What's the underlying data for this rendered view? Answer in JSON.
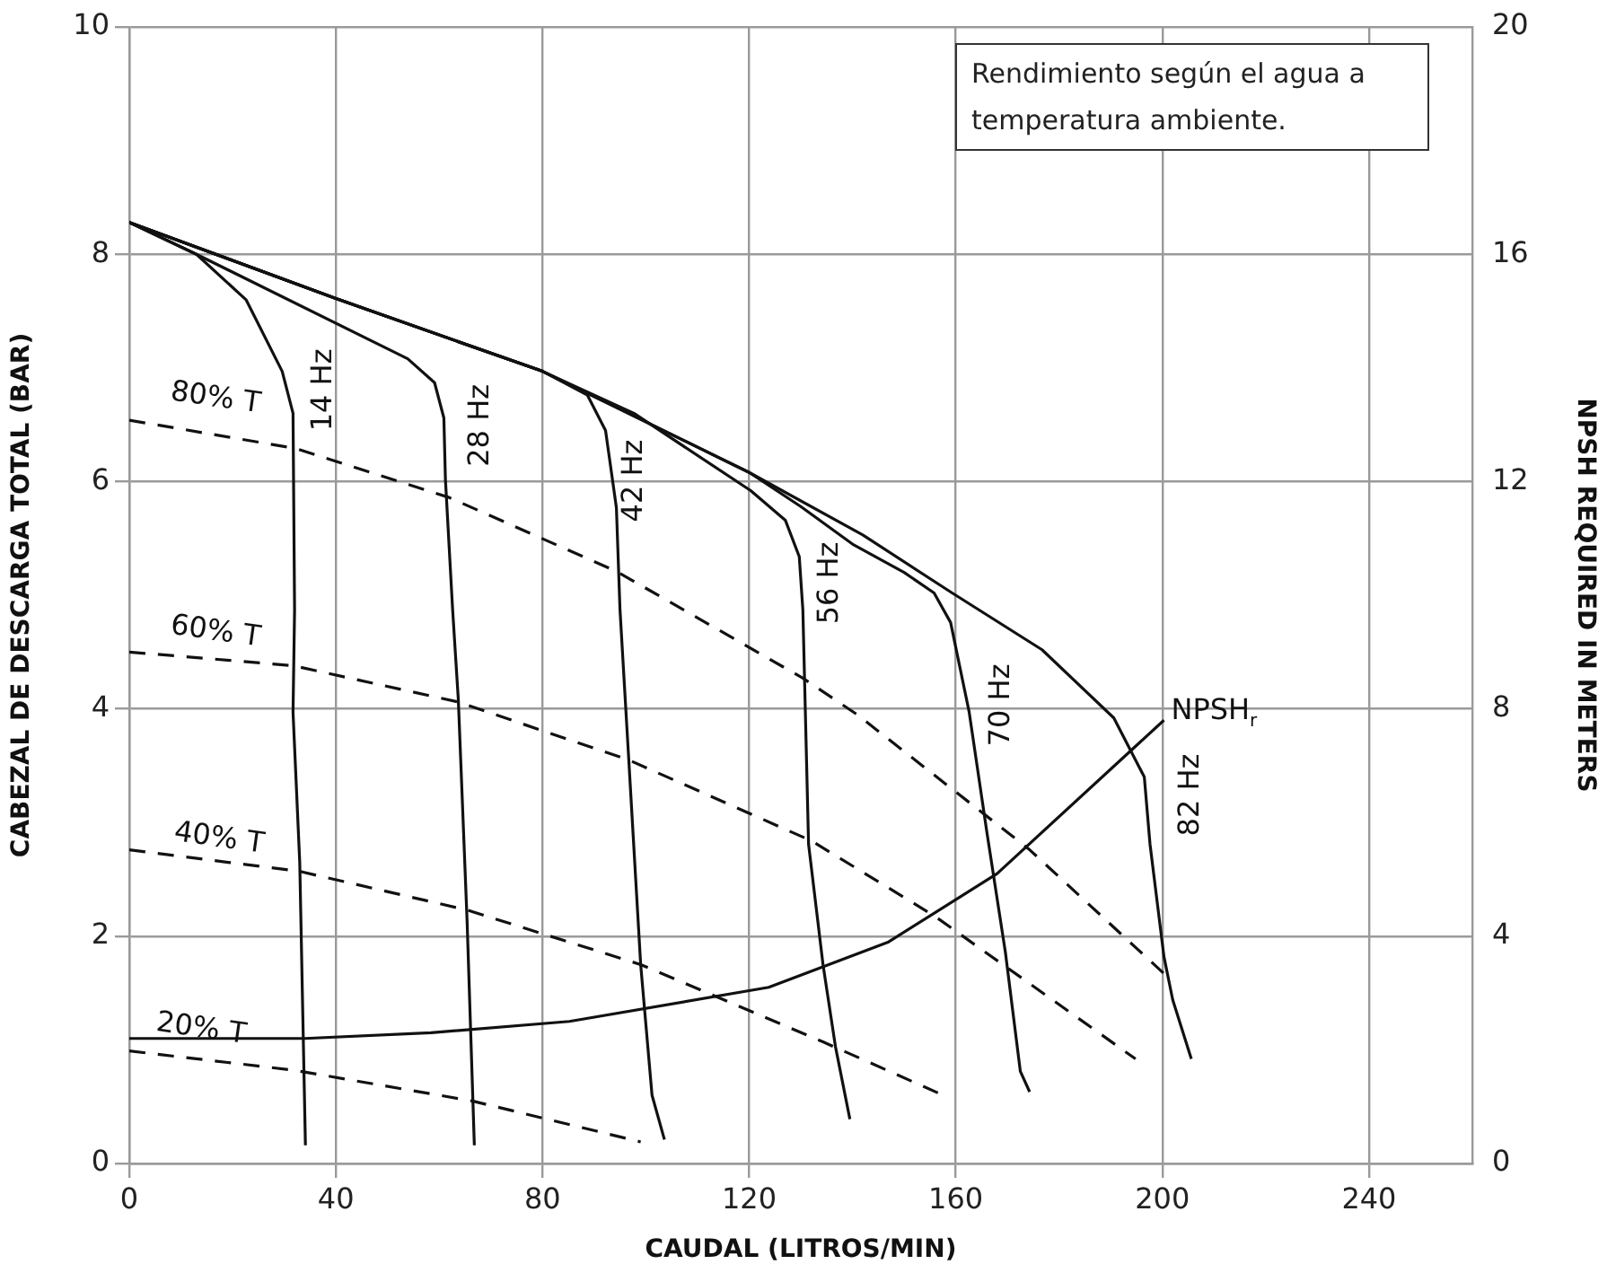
{
  "chart_data": {
    "type": "line",
    "xlabel": "CAUDAL (LITROS/MIN)",
    "ylabel": "CABEZAL DE DESCARGA TOTAL (BAR)",
    "y2label": "NPSH REQUIRED IN METERS",
    "xlim": [
      0,
      260
    ],
    "xticks": [
      0,
      40,
      80,
      120,
      160,
      200,
      240
    ],
    "ylim": [
      0,
      10
    ],
    "yticks": [
      0,
      2,
      4,
      6,
      8,
      10
    ],
    "y2lim": [
      0,
      20
    ],
    "y2ticks": [
      0,
      4,
      8,
      12,
      16,
      20
    ],
    "grid": true,
    "legend": false,
    "marker": "none",
    "series": [
      {
        "name": "14 Hz",
        "color": "#111111",
        "line_style": "solid",
        "x": [
          0,
          13,
          22.6,
          29.6,
          31.7,
          32,
          31.7,
          33,
          34.1
        ],
        "values": [
          8.28,
          8.0,
          7.6,
          6.97,
          6.6,
          4.87,
          3.97,
          2.65,
          0.16
        ]
      },
      {
        "name": "28 Hz",
        "color": "#111111",
        "line_style": "solid",
        "x": [
          0,
          13,
          53.9,
          59.1,
          60.9,
          61.2,
          62.6,
          63.7,
          65.4,
          66.8
        ],
        "values": [
          8.28,
          8.0,
          7.08,
          6.87,
          6.56,
          6.02,
          4.87,
          4.08,
          2.13,
          0.16
        ]
      },
      {
        "name": "42 Hz",
        "color": "#111111",
        "line_style": "solid",
        "x": [
          0,
          40,
          80,
          88.7,
          92.2,
          94.3,
          95,
          96.7,
          99,
          101.2,
          103.6
        ],
        "values": [
          8.28,
          7.61,
          6.97,
          6.76,
          6.45,
          5.77,
          4.87,
          3.55,
          1.75,
          0.6,
          0.21
        ]
      },
      {
        "name": "56 Hz",
        "color": "#111111",
        "line_style": "solid",
        "x": [
          0,
          40,
          80,
          97.7,
          120.3,
          127,
          129.7,
          130.4,
          131.5,
          134.3,
          136.7,
          139.5
        ],
        "values": [
          8.28,
          7.61,
          6.97,
          6.6,
          5.92,
          5.66,
          5.34,
          4.87,
          2.81,
          1.75,
          1.03,
          0.39
        ]
      },
      {
        "name": "70 Hz",
        "color": "#111111",
        "line_style": "solid",
        "x": [
          0,
          40,
          80,
          120,
          130,
          140,
          150,
          155.8,
          159,
          162.6,
          166,
          169.6,
          172.5,
          174.3
        ],
        "values": [
          8.28,
          7.61,
          6.97,
          6.08,
          5.78,
          5.45,
          5.2,
          5.02,
          4.76,
          3.97,
          2.92,
          1.86,
          0.81,
          0.63
        ]
      },
      {
        "name": "82 Hz",
        "color": "#111111",
        "line_style": "solid",
        "x": [
          0,
          40,
          80,
          120,
          142,
          159.3,
          176.7,
          190.6,
          196.5,
          197.6,
          200.3,
          202,
          205.6
        ],
        "values": [
          8.28,
          7.61,
          6.97,
          6.08,
          5.53,
          5.02,
          4.52,
          3.92,
          3.4,
          2.81,
          1.82,
          1.44,
          0.92
        ]
      },
      {
        "name": "80% T",
        "color": "#111111",
        "line_style": "dashed",
        "x": [
          0,
          32.3,
          61.9,
          94.3,
          130.4,
          140.9,
          174.3,
          202
        ],
        "values": [
          6.54,
          6.29,
          5.86,
          5.21,
          4.27,
          3.95,
          2.76,
          1.6
        ]
      },
      {
        "name": "60% T",
        "color": "#111111",
        "line_style": "dashed",
        "x": [
          0,
          31.7,
          63.7,
          96.7,
          132,
          155.8,
          194.8
        ],
        "values": [
          4.5,
          4.38,
          4.06,
          3.55,
          2.84,
          2.18,
          0.92
        ]
      },
      {
        "name": "40% T",
        "color": "#111111",
        "line_style": "dashed",
        "x": [
          0,
          33,
          65.4,
          99,
          134.3,
          157.6
        ],
        "values": [
          2.76,
          2.57,
          2.23,
          1.75,
          1.07,
          0.6
        ]
      },
      {
        "name": "20% T",
        "color": "#111111",
        "line_style": "dashed",
        "x": [
          0,
          32,
          66.4,
          99
        ],
        "values": [
          0.99,
          0.82,
          0.55,
          0.19
        ]
      },
      {
        "name": "NPSH$_{r}$",
        "color": "#111111",
        "line_style": "solid",
        "axis": "y2",
        "x": [
          0,
          34,
          58.4,
          85.2,
          123.8,
          147,
          168,
          200.3
        ],
        "values": [
          2.2,
          2.2,
          2.3,
          2.5,
          3.1,
          3.9,
          5.1,
          7.8
        ]
      }
    ],
    "annotations": [
      "Rendimiento según el agua a temperatura ambiente."
    ]
  }
}
